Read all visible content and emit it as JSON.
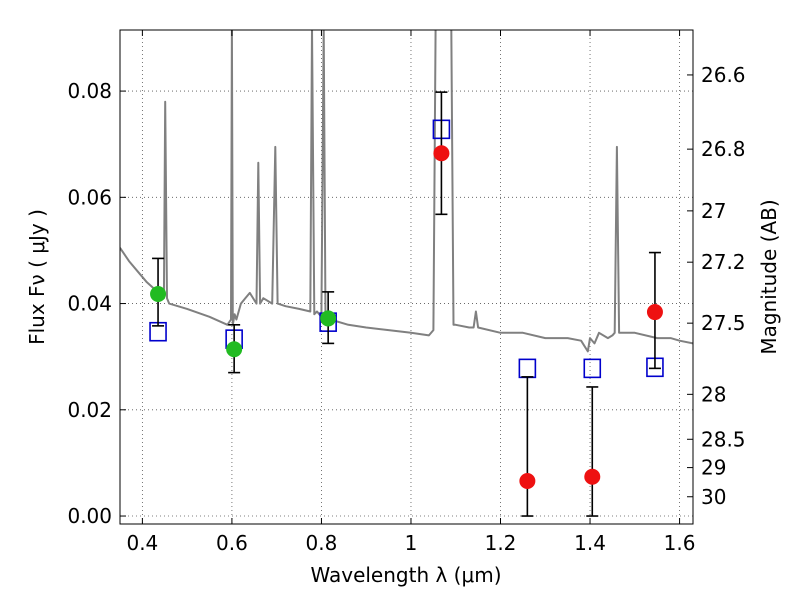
{
  "chart_data": {
    "type": "scatter",
    "xlabel": "Wavelength  λ (μm)",
    "ylabel": "Flux  Fν  ( μJy )",
    "ylabel_right": "Magnitude (AB)",
    "xlim": [
      0.35,
      1.63
    ],
    "ylim": [
      -0.0015,
      0.0915
    ],
    "grid": true,
    "x_ticks": [
      0.4,
      0.6,
      0.8,
      1.0,
      1.2,
      1.4,
      1.6
    ],
    "x_tick_labels": [
      "0.4",
      "0.6",
      "0.8",
      "1",
      "1.2",
      "1.4",
      "1.6"
    ],
    "y_ticks": [
      0.0,
      0.02,
      0.04,
      0.06,
      0.08
    ],
    "y_tick_labels": [
      "0.00",
      "0.02",
      "0.04",
      "0.06",
      "0.08"
    ],
    "right_ticks": [
      {
        "label": "26.6",
        "flux": 0.08304
      },
      {
        "label": "26.8",
        "flux": 0.06907
      },
      {
        "label": "27",
        "flux": 0.05745
      },
      {
        "label": "27.2",
        "flux": 0.04779
      },
      {
        "label": "27.5",
        "flux": 0.03631
      },
      {
        "label": "28",
        "flux": 0.02291
      },
      {
        "label": "28.5",
        "flux": 0.01445
      },
      {
        "label": "29",
        "flux": 0.00912
      },
      {
        "label": "30",
        "flux": 0.00363
      }
    ],
    "series": [
      {
        "kind": "spectrum",
        "color": "#808080",
        "x": [
          0.35,
          0.37,
          0.39,
          0.41,
          0.43,
          0.44,
          0.448,
          0.451,
          0.455,
          0.46,
          0.5,
          0.55,
          0.59,
          0.598,
          0.6,
          0.602,
          0.606,
          0.61,
          0.62,
          0.63,
          0.64,
          0.655,
          0.659,
          0.663,
          0.67,
          0.69,
          0.697,
          0.702,
          0.72,
          0.75,
          0.775,
          0.779,
          0.784,
          0.79,
          0.8,
          0.805,
          0.809,
          0.814,
          0.82,
          0.86,
          0.9,
          0.95,
          1.0,
          1.04,
          1.05,
          1.055,
          1.06,
          1.07,
          1.09,
          1.095,
          1.1,
          1.13,
          1.14,
          1.145,
          1.15,
          1.2,
          1.25,
          1.3,
          1.35,
          1.38,
          1.395,
          1.4,
          1.41,
          1.42,
          1.44,
          1.45,
          1.455,
          1.46,
          1.465,
          1.47,
          1.5,
          1.55,
          1.58,
          1.6,
          1.63
        ],
        "y": [
          0.0505,
          0.048,
          0.046,
          0.044,
          0.0425,
          0.0415,
          0.041,
          0.078,
          0.041,
          0.04,
          0.039,
          0.0375,
          0.036,
          0.037,
          0.092,
          0.036,
          0.038,
          0.037,
          0.04,
          0.041,
          0.042,
          0.04,
          0.0665,
          0.04,
          0.041,
          0.04,
          0.0695,
          0.04,
          0.0395,
          0.039,
          0.0385,
          0.092,
          0.038,
          0.0385,
          0.0375,
          0.092,
          0.037,
          0.038,
          0.037,
          0.036,
          0.0355,
          0.035,
          0.0345,
          0.034,
          0.035,
          0.092,
          0.092,
          0.092,
          0.092,
          0.036,
          0.036,
          0.0355,
          0.0355,
          0.0385,
          0.0355,
          0.0345,
          0.0345,
          0.0335,
          0.0335,
          0.033,
          0.031,
          0.0335,
          0.0325,
          0.0345,
          0.0335,
          0.034,
          0.0345,
          0.0695,
          0.0345,
          0.0345,
          0.0345,
          0.0335,
          0.0335,
          0.033,
          0.0325
        ]
      },
      {
        "kind": "model-boxes",
        "color": "#0000cc",
        "x": [
          0.435,
          0.605,
          0.815,
          1.068,
          1.26,
          1.405,
          1.545
        ],
        "y": [
          0.0347,
          0.0333,
          0.0365,
          0.0728,
          0.0278,
          0.0278,
          0.028
        ]
      },
      {
        "kind": "observed-points",
        "x": [
          0.435,
          0.605,
          0.815,
          1.068,
          1.26,
          1.405,
          1.545
        ],
        "y": [
          0.0418,
          0.0314,
          0.0372,
          0.0683,
          0.0066,
          0.0074,
          0.0384
        ],
        "yerr_low": [
          0.0358,
          0.027,
          0.0325,
          0.0568,
          0.0,
          0.0,
          0.0278
        ],
        "yerr_high": [
          0.0485,
          0.036,
          0.0422,
          0.0798,
          0.0262,
          0.0243,
          0.0496
        ],
        "colors": [
          "#22bb22",
          "#22bb22",
          "#22bb22",
          "#ee1111",
          "#ee1111",
          "#ee1111",
          "#ee1111"
        ]
      }
    ]
  }
}
